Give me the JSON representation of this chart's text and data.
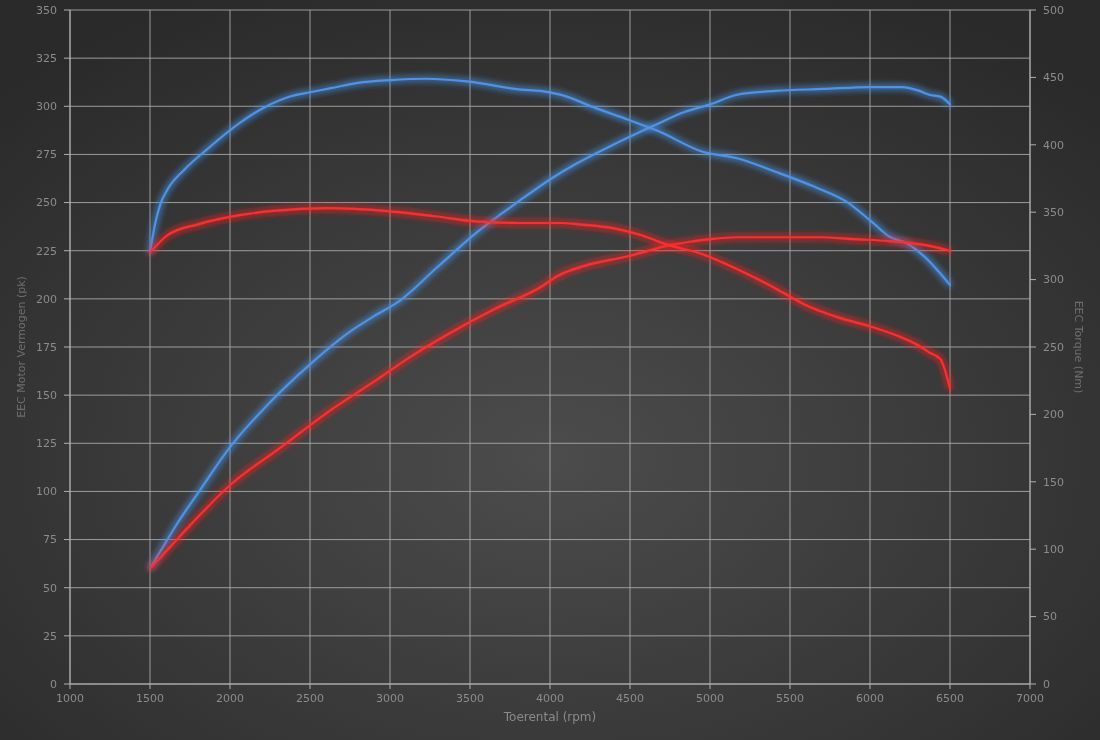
{
  "chart_data": {
    "type": "line",
    "xlabel": "Toerental (rpm)",
    "ylabel": "EEC Motor Vermogen (pk)",
    "y2label": "EEC Torque (Nm)",
    "xlim": [
      1000,
      7000
    ],
    "xticks": [
      1000,
      1500,
      2000,
      2500,
      3000,
      3500,
      4000,
      4500,
      5000,
      5500,
      6000,
      6500,
      7000
    ],
    "ylim": [
      0,
      350
    ],
    "yticks": [
      0,
      25,
      50,
      75,
      100,
      125,
      150,
      175,
      200,
      225,
      250,
      275,
      300,
      325,
      350
    ],
    "y2lim": [
      0,
      500
    ],
    "y2ticks": [
      0,
      50,
      100,
      150,
      200,
      250,
      300,
      350,
      400,
      450,
      500
    ],
    "grid": true,
    "series": [
      {
        "color": "#4d94e8",
        "x": [
          1500,
          1580,
          1675,
          1815,
          2000,
          2235,
          2500,
          2750,
          2900,
          3060,
          3290,
          3550,
          3810,
          4000,
          4160,
          4370,
          4650,
          4840,
          5000,
          5170,
          5410,
          5710,
          6000,
          6200,
          6310,
          6370,
          6440,
          6500
        ],
        "values": [
          60,
          71,
          84,
          101,
          123,
          145,
          166,
          183,
          191,
          199,
          216,
          235,
          251,
          262,
          270,
          279,
          290,
          297,
          301,
          306,
          308,
          309,
          310,
          310,
          308,
          306,
          305,
          301
        ]
      },
      {
        "color": "#4d94e8",
        "axis": "y2",
        "x": [
          1500,
          1535,
          1565,
          1610,
          1710,
          1860,
          2070,
          2220,
          2380,
          2500,
          2630,
          2800,
          3000,
          3230,
          3480,
          3820,
          3940,
          4070,
          4290,
          4480,
          4680,
          4950,
          5170,
          5410,
          5650,
          5850,
          6010,
          6120,
          6230,
          6340,
          6500
        ],
        "values": [
          320,
          343,
          356,
          367,
          381,
          397,
          417,
          428,
          436,
          439,
          442,
          446,
          448,
          449,
          447,
          441,
          440,
          437,
          427,
          419,
          410,
          395,
          390,
          380,
          369,
          358,
          343,
          332,
          327,
          317,
          296
        ]
      },
      {
        "color": "#ff2d2d",
        "x": [
          1500,
          1580,
          1690,
          2010,
          2320,
          2625,
          2900,
          3130,
          3370,
          3660,
          3940,
          4050,
          4210,
          4480,
          4760,
          5000,
          5170,
          5440,
          5690,
          5900,
          6120,
          6340,
          6500
        ],
        "values": [
          60,
          67,
          77,
          104,
          123,
          142,
          157,
          170,
          182,
          195,
          206,
          212,
          217,
          222,
          228,
          231,
          232,
          232,
          232,
          231,
          230,
          228,
          225
        ]
      },
      {
        "color": "#ff2d2d",
        "axis": "y2",
        "x": [
          1500,
          1610,
          1800,
          2070,
          2270,
          2610,
          2970,
          3280,
          3550,
          3820,
          4070,
          4180,
          4400,
          4540,
          4760,
          4950,
          5110,
          5370,
          5600,
          5800,
          6010,
          6180,
          6290,
          6370,
          6440,
          6500
        ],
        "values": [
          320,
          333,
          341,
          348,
          351,
          353,
          351,
          347,
          343,
          342,
          342,
          341,
          338,
          334,
          325,
          319,
          311,
          296,
          281,
          272,
          265,
          258,
          252,
          246,
          241,
          219
        ]
      }
    ]
  }
}
